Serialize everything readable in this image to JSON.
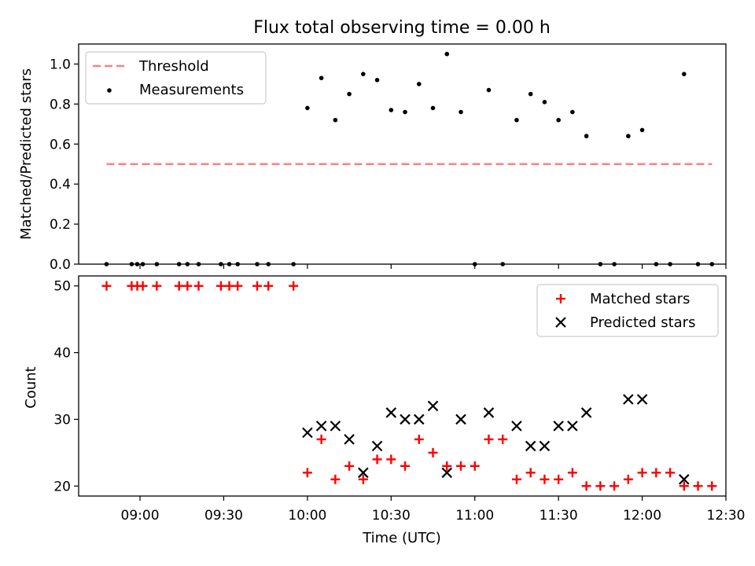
{
  "chart_data": [
    {
      "type": "scatter",
      "title": "Flux total observing time = 0.00 h",
      "xlabel": "",
      "ylabel": "Matched/Predicted stars",
      "ylim": [
        0,
        1.1
      ],
      "xlim_minutes": [
        518,
        750
      ],
      "yticks": [
        "0.0",
        "0.2",
        "0.4",
        "0.6",
        "0.8",
        "1.0"
      ],
      "legend_position": "upper left",
      "threshold": {
        "name": "Threshold",
        "value": 0.5,
        "x_start_minutes": 528,
        "x_end_minutes": 745,
        "color": "#ff7f7f"
      },
      "series": [
        {
          "name": "Measurements",
          "marker": "dot",
          "color": "#000000",
          "x_minutes": [
            528,
            537,
            539,
            541,
            546,
            554,
            557,
            561,
            569,
            572,
            575,
            582,
            586,
            595,
            600,
            605,
            610,
            615,
            620,
            625,
            630,
            635,
            640,
            645,
            650,
            655,
            660,
            665,
            670,
            675,
            680,
            685,
            690,
            695,
            700,
            705,
            710,
            715,
            720,
            725,
            730,
            735,
            740,
            745
          ],
          "values": [
            0,
            0,
            0,
            0,
            0,
            0,
            0,
            0,
            0,
            0,
            0,
            0,
            0,
            0,
            0.78,
            0.93,
            0.72,
            0.85,
            0.95,
            0.92,
            0.77,
            0.76,
            0.9,
            0.78,
            1.05,
            0.76,
            0,
            0.87,
            0,
            0.72,
            0.85,
            0.81,
            0.72,
            0.76,
            0.64,
            0,
            0,
            0.64,
            0.67,
            0,
            0,
            0.95,
            0,
            0
          ]
        }
      ]
    },
    {
      "type": "scatter",
      "title": "",
      "xlabel": "Time (UTC)",
      "ylabel": "Count",
      "ylim": [
        18.5,
        51.5
      ],
      "xlim_minutes": [
        518,
        750
      ],
      "yticks": [
        "20",
        "30",
        "40",
        "50"
      ],
      "xticks": [
        "09:00",
        "09:30",
        "10:00",
        "10:30",
        "11:00",
        "11:30",
        "12:00",
        "12:30"
      ],
      "xticks_minutes": [
        540,
        570,
        600,
        630,
        660,
        690,
        720,
        750
      ],
      "legend_position": "upper right",
      "series": [
        {
          "name": "Matched stars",
          "marker": "plus",
          "color": "#ff0000",
          "x_minutes": [
            528,
            537,
            539,
            541,
            546,
            554,
            557,
            561,
            569,
            572,
            575,
            582,
            586,
            595,
            600,
            605,
            610,
            615,
            620,
            625,
            630,
            635,
            640,
            645,
            650,
            655,
            660,
            665,
            670,
            675,
            680,
            685,
            690,
            695,
            700,
            705,
            710,
            715,
            720,
            725,
            730,
            735,
            740,
            745
          ],
          "values": [
            50,
            50,
            50,
            50,
            50,
            50,
            50,
            50,
            50,
            50,
            50,
            50,
            50,
            50,
            22,
            27,
            21,
            23,
            21,
            24,
            24,
            23,
            27,
            25,
            23,
            23,
            23,
            27,
            27,
            21,
            22,
            21,
            21,
            22,
            20,
            20,
            20,
            21,
            22,
            22,
            22,
            20,
            20,
            20
          ]
        },
        {
          "name": "Predicted stars",
          "marker": "x",
          "color": "#000000",
          "x_minutes": [
            600,
            605,
            610,
            615,
            620,
            625,
            630,
            635,
            640,
            645,
            650,
            655,
            665,
            675,
            680,
            685,
            690,
            695,
            700,
            715,
            720,
            735
          ],
          "values": [
            28,
            29,
            29,
            27,
            22,
            26,
            31,
            30,
            30,
            32,
            22,
            30,
            31,
            29,
            26,
            26,
            29,
            29,
            31,
            33,
            33,
            21
          ]
        }
      ]
    }
  ]
}
